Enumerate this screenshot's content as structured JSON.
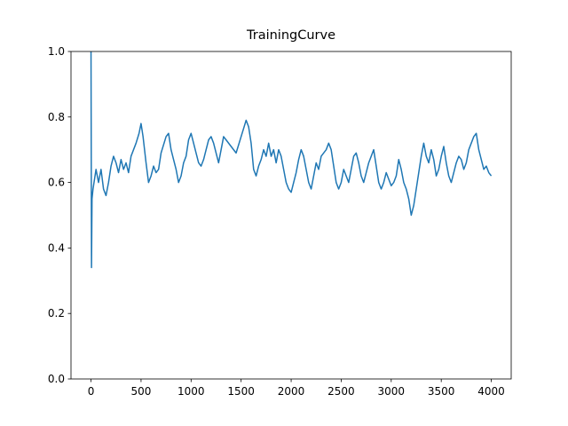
{
  "chart_data": {
    "type": "line",
    "title": "TrainingCurve",
    "x": [
      0,
      5,
      10,
      20,
      50,
      75,
      100,
      125,
      150,
      175,
      200,
      225,
      250,
      275,
      300,
      325,
      350,
      375,
      400,
      450,
      480,
      500,
      520,
      550,
      575,
      600,
      625,
      650,
      675,
      700,
      750,
      775,
      800,
      825,
      850,
      875,
      900,
      925,
      950,
      975,
      1000,
      1025,
      1050,
      1075,
      1100,
      1125,
      1150,
      1175,
      1200,
      1225,
      1250,
      1275,
      1300,
      1325,
      1350,
      1400,
      1450,
      1500,
      1550,
      1575,
      1600,
      1625,
      1650,
      1675,
      1700,
      1725,
      1750,
      1775,
      1800,
      1825,
      1850,
      1875,
      1900,
      1925,
      1950,
      1975,
      2000,
      2025,
      2050,
      2075,
      2100,
      2125,
      2150,
      2175,
      2200,
      2225,
      2250,
      2275,
      2300,
      2350,
      2375,
      2400,
      2425,
      2450,
      2475,
      2500,
      2525,
      2550,
      2575,
      2600,
      2625,
      2650,
      2675,
      2700,
      2725,
      2750,
      2775,
      2800,
      2825,
      2850,
      2875,
      2900,
      2925,
      2950,
      2975,
      3000,
      3025,
      3050,
      3075,
      3100,
      3125,
      3150,
      3175,
      3200,
      3225,
      3250,
      3275,
      3300,
      3325,
      3350,
      3375,
      3400,
      3425,
      3450,
      3475,
      3500,
      3525,
      3550,
      3575,
      3600,
      3625,
      3650,
      3675,
      3700,
      3725,
      3750,
      3775,
      3800,
      3825,
      3850,
      3875,
      3900,
      3925,
      3950,
      3975,
      4000
    ],
    "values": [
      1.0,
      0.34,
      0.55,
      0.58,
      0.64,
      0.6,
      0.64,
      0.58,
      0.56,
      0.6,
      0.65,
      0.68,
      0.66,
      0.63,
      0.67,
      0.64,
      0.66,
      0.63,
      0.68,
      0.72,
      0.75,
      0.78,
      0.74,
      0.66,
      0.6,
      0.62,
      0.65,
      0.63,
      0.64,
      0.69,
      0.74,
      0.75,
      0.7,
      0.67,
      0.64,
      0.6,
      0.62,
      0.66,
      0.68,
      0.73,
      0.75,
      0.72,
      0.69,
      0.66,
      0.65,
      0.67,
      0.7,
      0.73,
      0.74,
      0.72,
      0.69,
      0.66,
      0.7,
      0.74,
      0.73,
      0.71,
      0.69,
      0.74,
      0.79,
      0.77,
      0.72,
      0.64,
      0.62,
      0.65,
      0.67,
      0.7,
      0.68,
      0.72,
      0.68,
      0.7,
      0.66,
      0.7,
      0.68,
      0.64,
      0.6,
      0.58,
      0.57,
      0.6,
      0.63,
      0.67,
      0.7,
      0.68,
      0.64,
      0.6,
      0.58,
      0.62,
      0.66,
      0.64,
      0.68,
      0.7,
      0.72,
      0.7,
      0.65,
      0.6,
      0.58,
      0.6,
      0.64,
      0.62,
      0.6,
      0.64,
      0.68,
      0.69,
      0.66,
      0.62,
      0.6,
      0.63,
      0.66,
      0.68,
      0.7,
      0.65,
      0.6,
      0.58,
      0.6,
      0.63,
      0.61,
      0.59,
      0.6,
      0.62,
      0.67,
      0.64,
      0.6,
      0.58,
      0.55,
      0.5,
      0.53,
      0.58,
      0.63,
      0.68,
      0.72,
      0.68,
      0.66,
      0.7,
      0.67,
      0.62,
      0.64,
      0.68,
      0.71,
      0.66,
      0.62,
      0.6,
      0.63,
      0.66,
      0.68,
      0.67,
      0.64,
      0.66,
      0.7,
      0.72,
      0.74,
      0.75,
      0.7,
      0.67,
      0.64,
      0.65,
      0.63,
      0.62
    ],
    "color": "#1f77b4",
    "xlim": [
      -200,
      4199
    ],
    "xticks": [
      0,
      500,
      1000,
      1500,
      2000,
      2500,
      3000,
      3500,
      4000
    ],
    "ylim": [
      0,
      1
    ],
    "yticks": [
      {
        "value": 0,
        "label": "0.0"
      },
      0.2,
      0.4,
      0.6,
      0.8,
      {
        "value": 1,
        "label": "1.0"
      }
    ]
  }
}
